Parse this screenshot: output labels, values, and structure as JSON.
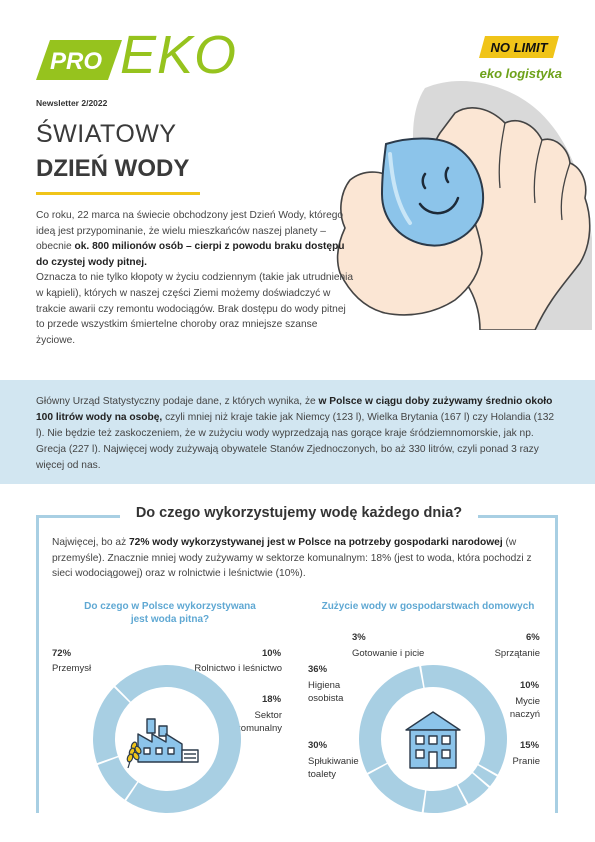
{
  "brand": {
    "pro": "PRO",
    "eko": "EKO",
    "newsletter": "Newsletter 2/2022",
    "partner_logo": "NO LIMIT",
    "partner_tagline": "eko logistyka"
  },
  "title": {
    "line1": "ŚWIATOWY",
    "line2": "DZIEŃ WODY"
  },
  "intro": {
    "p1_a": "Co roku, 22 marca na świecie obchodzony jest Dzień Wody, którego ideą jest przypominanie, że wielu mieszkańców naszej planety – obecnie ",
    "p1_b": "ok. 800 milionów osób – cierpi z powodu braku dostępu do czystej wody pitnej.",
    "p2": "Oznacza to nie tylko kłopoty w życiu codziennym (takie jak utrudnienia w kąpieli), których w naszej części Ziemi możemy doświadczyć w trakcie awarii czy remontu wodociągów. Brak dostępu do wody pitnej to przede wszystkim śmiertelne choroby oraz mniejsze szanse życiowe."
  },
  "band": {
    "a": "Główny Urząd Statystyczny podaje dane, z których wynika, że ",
    "b": "w Polsce w ciągu doby zużywamy średnio około 100 litrów wody na osobę,",
    "c": " czyli mniej niż kraje takie jak Niemcy (123 l), Wielka Brytania (167 l) czy Holandia (132 l). Nie będzie też zaskoczeniem, że w zużyciu wody wyprzedzają nas gorące kraje śródziemnomorskie, jak np. Grecja (227 l). Najwięcej wody zużywają obywatele Stanów Zjednoczonych, bo aż 330 litrów, czyli ponad 3 razy więcej od nas."
  },
  "usage": {
    "heading": "Do czego wykorzystujemy wodę każdego dnia?",
    "a": "Najwięcej, bo aż ",
    "b": "72% wody wykorzystywanej jest w Polsce na potrzeby gospodarki narodowej",
    "c": " (w przemyśle). Znacznie mniej wody zużywamy w sektorze komunalnym: 18% (jest to woda, która pochodzi z sieci wodociągowej) oraz w rolnictwie i leśnictwie (10%)."
  },
  "chart_data": [
    {
      "type": "pie",
      "title": "Do czego w Polsce wykorzystywana jest woda pitna?",
      "title_line1": "Do czego w Polsce wykorzystywana",
      "title_line2": "jest woda pitna?",
      "slices": [
        {
          "label": "Przemysł",
          "value": 72,
          "value_label": "72%"
        },
        {
          "label": "Rolnictwo i leśnictwo",
          "value": 10,
          "value_label": "10%"
        },
        {
          "label": "Sektor komunalny",
          "label_line1": "Sektor",
          "label_line2": "komunalny",
          "value": 18,
          "value_label": "18%"
        }
      ]
    },
    {
      "type": "pie",
      "title": "Zużycie wody w gospodarstwach domowych",
      "slices": [
        {
          "label": "Higiena osobista",
          "label_line1": "Higiena",
          "label_line2": "osobista",
          "value": 36,
          "value_label": "36%"
        },
        {
          "label": "Gotowanie i picie",
          "value": 3,
          "value_label": "3%"
        },
        {
          "label": "Sprzątanie",
          "value": 6,
          "value_label": "6%"
        },
        {
          "label": "Mycie naczyń",
          "label_line1": "Mycie",
          "label_line2": "naczyń",
          "value": 10,
          "value_label": "10%"
        },
        {
          "label": "Pranie",
          "value": 15,
          "value_label": "15%"
        },
        {
          "label": "Spłukiwanie toalety",
          "label_line1": "Spłukiwanie",
          "label_line2": "toalety",
          "value": 30,
          "value_label": "30%"
        }
      ]
    }
  ],
  "colors": {
    "green": "#96c31e",
    "yellow": "#f0c419",
    "band_blue": "#d2e6f1",
    "donut_blue": "#a8cfe3",
    "title_blue": "#5fa8d3"
  }
}
